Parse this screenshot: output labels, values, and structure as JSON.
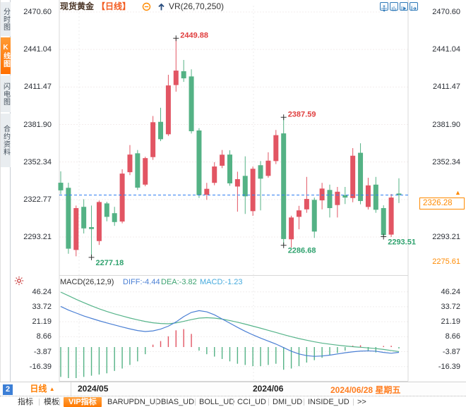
{
  "colors": {
    "up_candle": "#e25563",
    "down_candle": "#54b285",
    "diff_line": "#4a7fd4",
    "dea_line": "#56b48a",
    "accent_orange": "#ff8a00",
    "annotation_red": "#e03e3e",
    "annotation_green": "#2fa26e",
    "last_price_line": "#2f7ef0",
    "icon_blue": "#2e79b8",
    "active_tab_orange": "#ff6f00"
  },
  "sidebar": {
    "items": [
      {
        "label": "分时图",
        "active": false
      },
      {
        "label": "K线图",
        "active": true
      },
      {
        "label": "闪电图",
        "active": false
      },
      {
        "label": "合约资料",
        "active": false
      }
    ]
  },
  "header": {
    "symbol": "现货黄金",
    "period_tag": "【日线】",
    "indicator": "VR(26,70,250)",
    "window_icons": [
      "crosshair",
      "chart-panel",
      "chart-play",
      "exit-right"
    ]
  },
  "main_chart": {
    "y_axis_labels": [
      "2470.60",
      "2441.04",
      "2411.47",
      "2381.90",
      "2352.34",
      "2322.77",
      "2293.21"
    ],
    "x_labels": [
      "2024/05",
      "2024/06",
      "2024/06/28 星期五"
    ],
    "last_price": "2326.28",
    "low_band_label": "2275.61",
    "annotations": [
      {
        "text": "2449.88",
        "color": "red",
        "candle": 15,
        "price": 2449.88,
        "pos": "above"
      },
      {
        "text": "2277.18",
        "color": "green",
        "candle": 4,
        "price": 2277.18,
        "pos": "below"
      },
      {
        "text": "2387.59",
        "color": "red",
        "candle": 29,
        "price": 2387.59,
        "pos": "above"
      },
      {
        "text": "2286.68",
        "color": "green",
        "candle": 29,
        "price": 2286.68,
        "pos": "below"
      },
      {
        "text": "2293.51",
        "color": "green",
        "candle": 42,
        "price": 2293.51,
        "pos": "below"
      }
    ]
  },
  "macd_panel": {
    "title": "MACD(26,12,9)",
    "diff_label": "DIFF:-4.44",
    "dea_label": "DEA:-3.82",
    "macd_label": "MACD:-1.23",
    "y_axis_labels": [
      "46.24",
      "33.72",
      "21.19",
      "8.66",
      "-3.87",
      "-16.39"
    ]
  },
  "footer": {
    "page_number": "2",
    "period_label": "日线",
    "toolbar": [
      "指标",
      "模板",
      "VIP指标",
      "BARUPDN_UD",
      "BIAS_UD",
      "BOLL_UD",
      "CCI_UD",
      "DMI_UD",
      "INSIDE_UD",
      ">>"
    ]
  },
  "chart_data": {
    "type": "candlestick",
    "title": "现货黄金 日线",
    "price_axis": [
      2470.6,
      2441.04,
      2411.47,
      2381.9,
      2352.34,
      2322.77,
      2293.21
    ],
    "last_price": 2326.28,
    "candles_ohlc": [
      [
        2336,
        2345,
        2327,
        2330
      ],
      [
        2332,
        2336,
        2280,
        2284
      ],
      [
        2283,
        2318,
        2278,
        2316
      ],
      [
        2317,
        2323,
        2296,
        2300
      ],
      [
        2301,
        2318,
        2277.2,
        2299.5
      ],
      [
        2290,
        2322,
        2287,
        2320.8
      ],
      [
        2319.7,
        2321,
        2305.6,
        2309.1
      ],
      [
        2312,
        2317,
        2302,
        2305
      ],
      [
        2305.4,
        2346.6,
        2304,
        2343.2
      ],
      [
        2344.3,
        2365.7,
        2342,
        2358.2
      ],
      [
        2359.2,
        2361.8,
        2330.3,
        2332.1
      ],
      [
        2334.5,
        2356.5,
        2333.2,
        2355.4
      ],
      [
        2356.2,
        2388.6,
        2354,
        2383.7
      ],
      [
        2384,
        2395.1,
        2368.8,
        2370.3
      ],
      [
        2374.2,
        2421.1,
        2372.9,
        2412.7
      ],
      [
        2413,
        2449.88,
        2407.8,
        2424.4
      ],
      [
        2423.9,
        2432.8,
        2415.5,
        2418.3
      ],
      [
        2419.8,
        2425.4,
        2374.8,
        2376.6
      ],
      [
        2377.2,
        2379,
        2324,
        2326.2
      ],
      [
        2326.6,
        2335.9,
        2322.5,
        2331.2
      ],
      [
        2335.9,
        2352.2,
        2334,
        2348.8
      ],
      [
        2349.4,
        2361.8,
        2347.5,
        2358.1
      ],
      [
        2358.2,
        2361.6,
        2333.6,
        2335.5
      ],
      [
        2333,
        2344.7,
        2313.2,
        2338.8
      ],
      [
        2341.4,
        2356.8,
        2311.4,
        2325.3
      ],
      [
        2313.6,
        2348.8,
        2309.9,
        2347
      ],
      [
        2349.8,
        2353.1,
        2314.2,
        2339.2
      ],
      [
        2341.4,
        2360,
        2340,
        2353.4
      ],
      [
        2353.1,
        2377.6,
        2350.7,
        2373.5
      ],
      [
        2374.9,
        2387.59,
        2286.68,
        2291.6
      ],
      [
        2291.4,
        2310,
        2284.9,
        2308.6
      ],
      [
        2309.1,
        2317.8,
        2299.3,
        2314.2
      ],
      [
        2315,
        2340.6,
        2312.3,
        2323.2
      ],
      [
        2322.5,
        2324.3,
        2292.5,
        2297.5
      ],
      [
        2322.1,
        2335.9,
        2315,
        2331.4
      ],
      [
        2330.3,
        2334.5,
        2308.6,
        2316
      ],
      [
        2318.4,
        2332.7,
        2308.6,
        2328.9
      ],
      [
        2326.2,
        2332.7,
        2319.2,
        2324.3
      ],
      [
        2323.9,
        2363.3,
        2320.6,
        2357.3
      ],
      [
        2359.6,
        2367.1,
        2319,
        2321.6
      ],
      [
        2316.9,
        2339.9,
        2314.9,
        2333.9
      ],
      [
        2334.5,
        2340.6,
        2312.3,
        2314.7
      ],
      [
        2316,
        2318.2,
        2293.51,
        2294.7
      ],
      [
        2295.1,
        2327.1,
        2293.2,
        2324.3
      ],
      [
        2327.5,
        2339.5,
        2320,
        2326.28
      ]
    ],
    "macd": {
      "axis": [
        46.24,
        33.72,
        21.19,
        8.66,
        -3.87,
        -16.39
      ],
      "diff": [
        34,
        31,
        28.5,
        26,
        24,
        22,
        20.2,
        18.5,
        16.8,
        15.2,
        13.8,
        13,
        13.5,
        15,
        17.5,
        21,
        25.5,
        29,
        30.5,
        29.5,
        27,
        23.5,
        20,
        16.5,
        13.2,
        10.2,
        7.5,
        5,
        2.5,
        -0.5,
        -3.5,
        -5.8,
        -7.2,
        -7.8,
        -7.5,
        -6.8,
        -5.8,
        -4.8,
        -4,
        -3.4,
        -3.2,
        -3.5,
        -4.5,
        -5.2,
        -4.44
      ],
      "dea": [
        46,
        43,
        40,
        37.2,
        34.5,
        32,
        29.8,
        27.8,
        26,
        24.3,
        22.8,
        21.4,
        20.3,
        19.7,
        19.5,
        20.2,
        21.5,
        23,
        24.2,
        24.6,
        24.2,
        23.4,
        22.2,
        20.8,
        19.2,
        17.5,
        15.8,
        14,
        12.2,
        10.4,
        8.7,
        7.1,
        5.7,
        4.4,
        3.3,
        2.4,
        1.6,
        0.9,
        0.3,
        -0.2,
        -0.7,
        -1.3,
        -2,
        -2.9,
        -3.82
      ],
      "hist": [
        -25,
        -26,
        -26,
        -25,
        -24,
        -23,
        -22,
        -20,
        -18,
        -15,
        -12,
        -6,
        2,
        5,
        9,
        14,
        15,
        11,
        -3,
        -6,
        -8,
        -10,
        -12,
        -14,
        -15,
        -16,
        -16,
        -15,
        -14,
        -19,
        -18,
        -16,
        -13,
        -11,
        -9,
        -7,
        -5,
        -3,
        1.2,
        1.5,
        -3,
        -4.5,
        0.9,
        1.1,
        -1.23
      ]
    }
  }
}
